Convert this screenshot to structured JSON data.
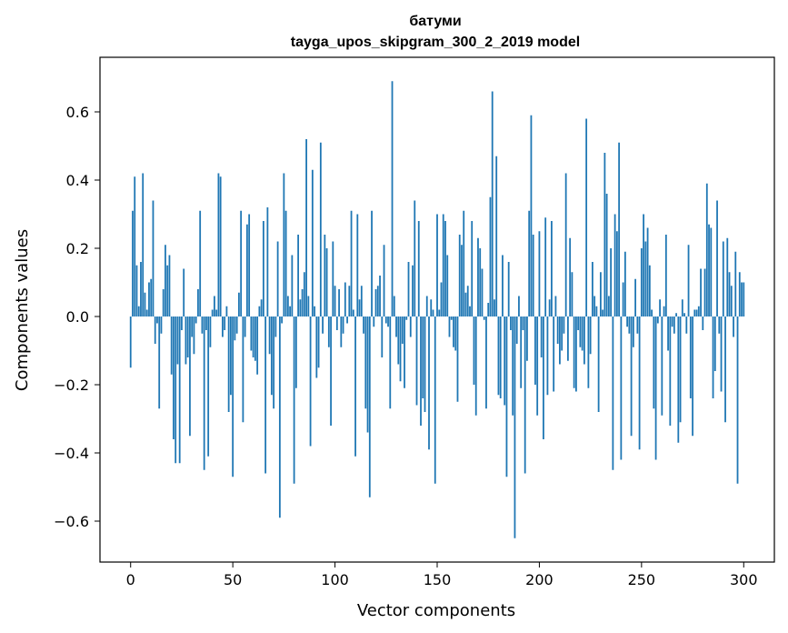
{
  "chart_data": {
    "type": "bar",
    "title": "батуми",
    "subtitle": "tayga_upos_skipgram_300_2_2019 model",
    "xlabel": "Vector components",
    "ylabel": "Components values",
    "xlim": [
      -15,
      315
    ],
    "ylim": [
      -0.72,
      0.76
    ],
    "xticks": [
      0,
      50,
      100,
      150,
      200,
      250,
      300
    ],
    "xtick_labels": [
      "0",
      "50",
      "100",
      "150",
      "200",
      "250",
      "300"
    ],
    "yticks": [
      -0.6,
      -0.4,
      -0.2,
      0.0,
      0.2,
      0.4,
      0.6
    ],
    "ytick_labels": [
      "−0.6",
      "−0.4",
      "−0.2",
      "0.0",
      "0.2",
      "0.4",
      "0.6"
    ],
    "grid": false,
    "color": "#1f77b4",
    "values": [
      -0.15,
      0.31,
      0.41,
      0.15,
      0.03,
      0.16,
      0.42,
      0.07,
      0.02,
      0.1,
      0.11,
      0.34,
      -0.08,
      -0.02,
      -0.27,
      -0.05,
      0.08,
      0.21,
      0.15,
      0.18,
      -0.17,
      -0.36,
      -0.43,
      -0.14,
      -0.43,
      -0.04,
      0.14,
      -0.14,
      -0.12,
      -0.35,
      -0.06,
      -0.11,
      -0.02,
      0.08,
      0.31,
      -0.05,
      -0.45,
      -0.04,
      -0.41,
      -0.09,
      0.02,
      0.06,
      0.02,
      0.42,
      0.41,
      -0.06,
      -0.04,
      0.03,
      -0.28,
      -0.23,
      -0.47,
      -0.07,
      -0.05,
      0.07,
      0.31,
      -0.31,
      -0.06,
      0.27,
      0.3,
      -0.1,
      -0.12,
      -0.13,
      -0.17,
      0.03,
      0.05,
      0.28,
      -0.46,
      0.32,
      -0.11,
      -0.23,
      -0.27,
      -0.06,
      0.22,
      -0.59,
      -0.02,
      0.42,
      0.31,
      0.06,
      0.03,
      0.18,
      -0.49,
      -0.21,
      0.24,
      0.05,
      0.08,
      0.13,
      0.52,
      0.06,
      -0.38,
      0.43,
      0.03,
      -0.18,
      -0.15,
      0.51,
      -0.05,
      0.24,
      0.2,
      -0.09,
      -0.32,
      0.22,
      0.09,
      -0.04,
      0.08,
      -0.09,
      -0.05,
      0.1,
      -0.02,
      0.09,
      0.31,
      0.02,
      -0.41,
      0.3,
      0.05,
      0.09,
      -0.05,
      -0.27,
      -0.34,
      -0.53,
      0.31,
      -0.03,
      0.08,
      0.09,
      0.12,
      -0.12,
      0.21,
      -0.02,
      -0.03,
      -0.27,
      0.69,
      0.06,
      -0.06,
      -0.14,
      -0.19,
      -0.08,
      -0.21,
      -0.01,
      0.16,
      -0.06,
      0.15,
      0.34,
      -0.26,
      0.28,
      -0.32,
      -0.24,
      -0.28,
      0.06,
      -0.39,
      0.05,
      0.02,
      -0.49,
      0.3,
      0.02,
      0.1,
      0.3,
      0.28,
      0.18,
      -0.06,
      -0.01,
      -0.09,
      -0.1,
      -0.25,
      0.24,
      0.21,
      0.31,
      0.07,
      0.09,
      0.03,
      0.28,
      -0.2,
      -0.29,
      0.23,
      0.2,
      0.14,
      -0.01,
      -0.27,
      0.04,
      0.35,
      0.66,
      0.05,
      0.47,
      -0.23,
      -0.24,
      0.18,
      -0.26,
      -0.47,
      0.16,
      -0.04,
      -0.29,
      -0.65,
      -0.08,
      0.06,
      -0.21,
      -0.04,
      -0.46,
      -0.13,
      0.31,
      0.59,
      0.24,
      -0.2,
      -0.29,
      0.25,
      -0.12,
      -0.36,
      0.29,
      -0.23,
      0.05,
      0.28,
      -0.22,
      0.06,
      -0.08,
      -0.14,
      -0.1,
      -0.05,
      0.42,
      -0.13,
      0.23,
      0.13,
      -0.21,
      -0.22,
      -0.04,
      -0.09,
      -0.1,
      -0.14,
      0.58,
      -0.21,
      -0.11,
      0.16,
      0.06,
      0.03,
      -0.28,
      0.13,
      0.02,
      0.48,
      0.36,
      0.06,
      0.2,
      -0.45,
      0.3,
      0.25,
      0.51,
      -0.42,
      0.1,
      0.19,
      -0.03,
      -0.05,
      -0.35,
      -0.09,
      0.11,
      -0.05,
      -0.39,
      0.2,
      0.3,
      0.22,
      0.26,
      0.15,
      0.02,
      -0.27,
      -0.42,
      -0.02,
      0.05,
      -0.29,
      0.03,
      0.24,
      -0.1,
      -0.32,
      -0.03,
      -0.05,
      0.01,
      -0.37,
      -0.31,
      0.05,
      0.01,
      -0.05,
      0.21,
      -0.24,
      -0.35,
      0.02,
      0.02,
      0.03,
      0.14,
      -0.04,
      0.14,
      0.39,
      0.27,
      0.26,
      -0.24,
      -0.16,
      0.34,
      -0.05,
      -0.22,
      0.22,
      -0.31,
      0.23,
      0.13,
      0.09,
      -0.06,
      0.19,
      -0.49,
      0.13,
      0.1,
      0.1
    ]
  }
}
